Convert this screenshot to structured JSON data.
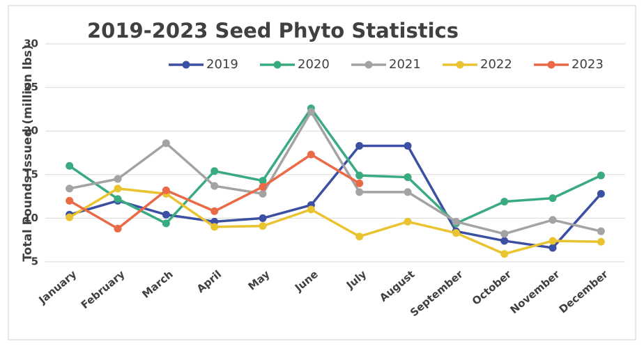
{
  "chart_data": {
    "type": "line",
    "title": "2019-2023 Seed Phyto Statistics",
    "y_label": "Total Pounds Issued (million lbs)",
    "categories": [
      "January",
      "February",
      "March",
      "April",
      "May",
      "June",
      "July",
      "August",
      "September",
      "October",
      "November",
      "December"
    ],
    "series": [
      {
        "name": "2019",
        "color": "#3b4fa3",
        "values": [
          10.4,
          12,
          10.4,
          9.6,
          10,
          11.5,
          18.3,
          18.3,
          8.5,
          7.4,
          6.6,
          12.8
        ]
      },
      {
        "name": "2020",
        "color": "#3aab80",
        "values": [
          16,
          12.2,
          9.4,
          15.4,
          14.3,
          22.6,
          14.9,
          14.7,
          9.4,
          11.9,
          12.3,
          14.9
        ]
      },
      {
        "name": "2021",
        "color": "#a3a3a3",
        "values": [
          13.4,
          14.5,
          18.6,
          13.7,
          12.8,
          22.2,
          13,
          13,
          9.6,
          8.2,
          9.8,
          8.5
        ]
      },
      {
        "name": "2022",
        "color": "#e9c330",
        "values": [
          10.1,
          13.4,
          12.8,
          9,
          9.1,
          11,
          7.9,
          9.6,
          8.3,
          5.9,
          7.4,
          7.3
        ]
      },
      {
        "name": "2023",
        "color": "#ea6a47",
        "values": [
          12,
          8.8,
          13.2,
          10.8,
          13.6,
          17.3,
          14,
          null,
          null,
          null,
          null,
          null
        ]
      }
    ],
    "ylim": [
      5,
      30
    ],
    "yticks": [
      5,
      10,
      15,
      20,
      25,
      30
    ],
    "grid": true,
    "legend": "top-right"
  }
}
